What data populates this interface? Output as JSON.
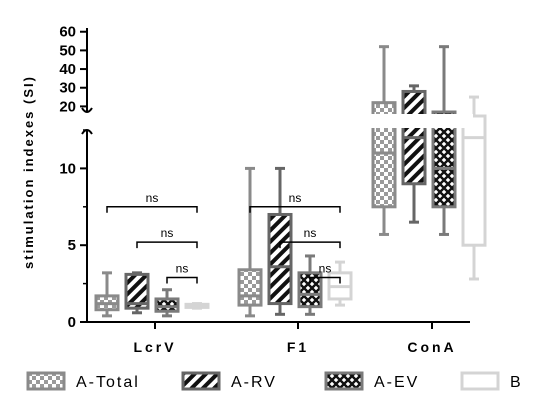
{
  "chart_data": {
    "type": "box",
    "ylabel": "stimulation indexes (SI)",
    "y_axis": {
      "lower_range": [
        0,
        12.5
      ],
      "lower_ticks": [
        "0",
        "5",
        "10"
      ],
      "upper_range": [
        17,
        62
      ],
      "upper_ticks": [
        "20",
        "30",
        "40",
        "50",
        "60"
      ],
      "axis_break": true
    },
    "categories": [
      "LcrV",
      "F1",
      "ConA"
    ],
    "series": [
      {
        "name": "A-Total",
        "color": "#8a8a8a",
        "pattern": "checker",
        "boxes": [
          {
            "min": 0.4,
            "q1": 0.8,
            "median": 1.2,
            "q3": 1.7,
            "max": 3.2
          },
          {
            "min": 0.4,
            "q1": 1.1,
            "median": 1.7,
            "q3": 3.4,
            "max": 10.0
          },
          {
            "min": 5.7,
            "q1": 7.5,
            "median": 11.0,
            "q3": 22.0,
            "max": 52.0
          }
        ]
      },
      {
        "name": "A-RV",
        "color": "#666666",
        "pattern": "diagonal",
        "boxes": [
          {
            "min": 0.6,
            "q1": 0.9,
            "median": 1.2,
            "q3": 3.1,
            "max": 3.2
          },
          {
            "min": 0.5,
            "q1": 1.2,
            "median": 3.6,
            "q3": 7.0,
            "max": 10.0
          },
          {
            "min": 6.5,
            "q1": 9.0,
            "median": 12.0,
            "q3": 28.0,
            "max": 31.0
          }
        ]
      },
      {
        "name": "A-EV",
        "color": "#7a7a7a",
        "pattern": "cross",
        "boxes": [
          {
            "min": 0.4,
            "q1": 0.7,
            "median": 1.0,
            "q3": 1.5,
            "max": 2.1
          },
          {
            "min": 0.5,
            "q1": 1.0,
            "median": 1.8,
            "q3": 3.2,
            "max": 4.3
          },
          {
            "min": 5.7,
            "q1": 7.5,
            "median": 10.0,
            "q3": 17.0,
            "max": 52.0
          }
        ]
      },
      {
        "name": "B",
        "color": "#d4d4d4",
        "pattern": "none",
        "boxes": [
          {
            "min": 0.9,
            "q1": 0.95,
            "median": 1.05,
            "q3": 1.15,
            "max": 1.2
          },
          {
            "min": 1.1,
            "q1": 1.5,
            "median": 2.3,
            "q3": 3.2,
            "max": 3.9
          },
          {
            "min": 2.8,
            "q1": 5.0,
            "median": 12.0,
            "q3": 16.0,
            "max": 25.0
          }
        ]
      }
    ],
    "annotations": [
      {
        "label": "ns",
        "category": 0,
        "from_series": 0,
        "to_series": 3,
        "level": 7.5
      },
      {
        "label": "ns",
        "category": 0,
        "from_series": 1,
        "to_series": 3,
        "level": 5.2
      },
      {
        "label": "ns",
        "category": 0,
        "from_series": 2,
        "to_series": 3,
        "level": 2.9
      },
      {
        "label": "ns",
        "category": 1,
        "from_series": 0,
        "to_series": 3,
        "level": 7.5
      },
      {
        "label": "ns",
        "category": 1,
        "from_series": 1,
        "to_series": 3,
        "level": 5.2
      },
      {
        "label": "ns",
        "category": 1,
        "from_series": 2,
        "to_series": 3,
        "level": 2.9
      }
    ],
    "legend_position": "bottom",
    "grid": false
  }
}
